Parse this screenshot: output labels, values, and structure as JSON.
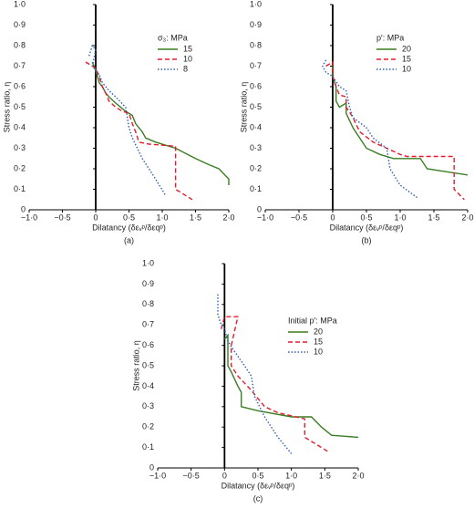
{
  "chart_data": [
    {
      "type": "line",
      "panel_label": "(a)",
      "xlabel": "Dilatancy (δεᵥᵖ/δεqᵖ)",
      "ylabel": "Stress ratio, η",
      "legend_title": "σ₃: MPa",
      "xlim": [
        -1,
        2
      ],
      "ylim": [
        0,
        1
      ],
      "xticks": [
        {
          "value": -1,
          "label": "−1·0"
        },
        {
          "value": -0.5,
          "label": "−0·5"
        },
        0,
        {
          "value": 0.5,
          "label": "0·5"
        },
        {
          "value": 1,
          "label": "1·0"
        },
        {
          "value": 1.5,
          "label": "1·5"
        },
        {
          "value": 2,
          "label": "2·0"
        }
      ],
      "yticks": [
        0,
        {
          "value": 0.1,
          "label": "0·1"
        },
        {
          "value": 0.2,
          "label": "0·2"
        },
        {
          "value": 0.3,
          "label": "0·3"
        },
        {
          "value": 0.4,
          "label": "0·4"
        },
        {
          "value": 0.5,
          "label": "0·5"
        },
        {
          "value": 0.6,
          "label": "0·6"
        },
        {
          "value": 0.7,
          "label": "0·7"
        },
        {
          "value": 0.8,
          "label": "0·8"
        },
        {
          "value": 0.9,
          "label": "0·9"
        },
        {
          "value": 1,
          "label": "1·0"
        }
      ],
      "series": [
        {
          "name": "15",
          "color": "#3a7d22",
          "style": "solid",
          "x": [
            -0.05,
            0,
            0.05,
            0.1,
            0.15,
            0.2,
            0.3,
            0.45,
            0.55,
            0.6,
            0.65,
            0.7,
            0.75,
            0.9,
            1.2,
            1.5,
            1.7,
            1.85,
            2.0,
            2.0
          ],
          "values": [
            0.72,
            0.68,
            0.62,
            0.6,
            0.57,
            0.55,
            0.52,
            0.48,
            0.46,
            0.42,
            0.4,
            0.38,
            0.35,
            0.33,
            0.3,
            0.25,
            0.22,
            0.2,
            0.15,
            0.12
          ]
        },
        {
          "name": "10",
          "color": "#e8192c",
          "style": "dashed",
          "x": [
            -0.15,
            -0.05,
            0,
            0.05,
            0.1,
            0.15,
            0.2,
            0.3,
            0.4,
            0.5,
            0.55,
            0.6,
            0.65,
            0.8,
            1.2,
            1.2,
            1.45
          ],
          "values": [
            0.72,
            0.7,
            0.69,
            0.65,
            0.6,
            0.57,
            0.53,
            0.5,
            0.48,
            0.47,
            0.42,
            0.38,
            0.33,
            0.32,
            0.31,
            0.1,
            0.05
          ]
        },
        {
          "name": "8",
          "color": "#2b5fb4",
          "style": "dotted",
          "x": [
            -0.1,
            -0.05,
            0,
            -0.05,
            0.05,
            0.1,
            0.2,
            0.3,
            0.45,
            0.5,
            0.55,
            0.7,
            0.9,
            1.05
          ],
          "values": [
            0.75,
            0.8,
            0.78,
            0.7,
            0.66,
            0.62,
            0.58,
            0.55,
            0.5,
            0.4,
            0.35,
            0.25,
            0.15,
            0.07
          ]
        }
      ]
    },
    {
      "type": "line",
      "panel_label": "(b)",
      "xlabel": "Dilatancy (δεᵥᵖ/δεqᵖ)",
      "ylabel": "Stress ratio, η",
      "legend_title": "p′: MPa",
      "xlim": [
        -1,
        2
      ],
      "ylim": [
        0,
        1
      ],
      "xticks": [
        {
          "value": -1,
          "label": "−1·0"
        },
        {
          "value": -0.5,
          "label": "−0·5"
        },
        0,
        {
          "value": 0.5,
          "label": "0·5"
        },
        {
          "value": 1,
          "label": "1·0"
        },
        {
          "value": 1.5,
          "label": "1·5"
        },
        {
          "value": 2,
          "label": "2·0"
        }
      ],
      "yticks": [
        0,
        {
          "value": 0.1,
          "label": "0·1"
        },
        {
          "value": 0.2,
          "label": "0·2"
        },
        {
          "value": 0.3,
          "label": "0·3"
        },
        {
          "value": 0.4,
          "label": "0·4"
        },
        {
          "value": 0.5,
          "label": "0·5"
        },
        {
          "value": 0.6,
          "label": "0·6"
        },
        {
          "value": 0.7,
          "label": "0·7"
        },
        {
          "value": 0.8,
          "label": "0·8"
        },
        {
          "value": 0.9,
          "label": "0·9"
        },
        {
          "value": 1,
          "label": "1·0"
        }
      ],
      "series": [
        {
          "name": "20",
          "color": "#3a7d22",
          "style": "solid",
          "x": [
            0,
            0,
            0.05,
            0.05,
            0.1,
            0.2,
            0.2,
            0.3,
            0.4,
            0.5,
            0.7,
            0.9,
            1.3,
            1.4,
            1.6,
            2.0
          ],
          "values": [
            0.7,
            0.65,
            0.6,
            0.53,
            0.5,
            0.52,
            0.47,
            0.4,
            0.35,
            0.3,
            0.27,
            0.25,
            0.25,
            0.2,
            0.19,
            0.17
          ]
        },
        {
          "name": "15",
          "color": "#e8192c",
          "style": "dashed",
          "x": [
            -0.1,
            0,
            0,
            0.05,
            0.1,
            0.2,
            0.2,
            0.3,
            0.4,
            0.6,
            0.8,
            1.0,
            1.1,
            1.8,
            1.8,
            1.95
          ],
          "values": [
            0.7,
            0.72,
            0.65,
            0.6,
            0.56,
            0.55,
            0.5,
            0.45,
            0.38,
            0.33,
            0.3,
            0.27,
            0.26,
            0.26,
            0.1,
            0.05
          ]
        },
        {
          "name": "10",
          "color": "#2b5fb4",
          "style": "dotted",
          "x": [
            -0.1,
            -0.15,
            -0.1,
            0,
            0.1,
            0.2,
            0.25,
            0.3,
            0.5,
            0.6,
            0.8,
            0.85,
            1.0,
            1.25
          ],
          "values": [
            0.73,
            0.7,
            0.67,
            0.65,
            0.6,
            0.58,
            0.5,
            0.45,
            0.4,
            0.35,
            0.3,
            0.2,
            0.12,
            0.06
          ]
        }
      ]
    },
    {
      "type": "line",
      "panel_label": "(c)",
      "xlabel": "Dilatancy (δεᵥᵖ/δεqᵖ)",
      "ylabel": "Stress ratio, η",
      "legend_title": "Initial p′: MPa",
      "xlim": [
        -1,
        2
      ],
      "ylim": [
        0,
        1
      ],
      "xticks": [
        {
          "value": -1,
          "label": "−1·0"
        },
        {
          "value": -0.5,
          "label": "−0·5"
        },
        0,
        {
          "value": 0.5,
          "label": "0·5"
        },
        {
          "value": 1,
          "label": "1·0"
        },
        {
          "value": 1.5,
          "label": "1·5"
        },
        {
          "value": 2,
          "label": "2·0"
        }
      ],
      "yticks": [
        0,
        {
          "value": 0.1,
          "label": "0·1"
        },
        {
          "value": 0.2,
          "label": "0·2"
        },
        {
          "value": 0.3,
          "label": "0·3"
        },
        {
          "value": 0.4,
          "label": "0·4"
        },
        {
          "value": 0.5,
          "label": "0·5"
        },
        {
          "value": 0.6,
          "label": "0·6"
        },
        {
          "value": 0.7,
          "label": "0·7"
        },
        {
          "value": 0.8,
          "label": "0·8"
        },
        {
          "value": 0.9,
          "label": "0·9"
        },
        {
          "value": 1,
          "label": "1·0"
        }
      ],
      "series": [
        {
          "name": "20",
          "color": "#3a7d22",
          "style": "solid",
          "x": [
            0,
            0.05,
            0.05,
            0.1,
            0.2,
            0.25,
            0.25,
            0.5,
            1.0,
            1.3,
            1.45,
            1.6,
            2.0
          ],
          "values": [
            0.63,
            0.65,
            0.5,
            0.47,
            0.4,
            0.37,
            0.3,
            0.28,
            0.25,
            0.25,
            0.2,
            0.16,
            0.15
          ]
        },
        {
          "name": "15",
          "color": "#e8192c",
          "style": "dashed",
          "x": [
            -0.05,
            0,
            0.2,
            0.1,
            0.1,
            0.2,
            0.4,
            0.6,
            0.8,
            1.2,
            1.2,
            1.3,
            1.55
          ],
          "values": [
            0.68,
            0.74,
            0.74,
            0.6,
            0.5,
            0.45,
            0.38,
            0.3,
            0.27,
            0.24,
            0.15,
            0.13,
            0.08
          ]
        },
        {
          "name": "10",
          "color": "#2b5fb4",
          "style": "dotted",
          "x": [
            -0.1,
            -0.1,
            -0.05,
            0,
            0.05,
            0.15,
            0.3,
            0.4,
            0.45,
            0.6,
            0.8,
            1.0
          ],
          "values": [
            0.85,
            0.75,
            0.7,
            0.68,
            0.62,
            0.57,
            0.5,
            0.45,
            0.35,
            0.25,
            0.15,
            0.07
          ]
        }
      ]
    }
  ]
}
